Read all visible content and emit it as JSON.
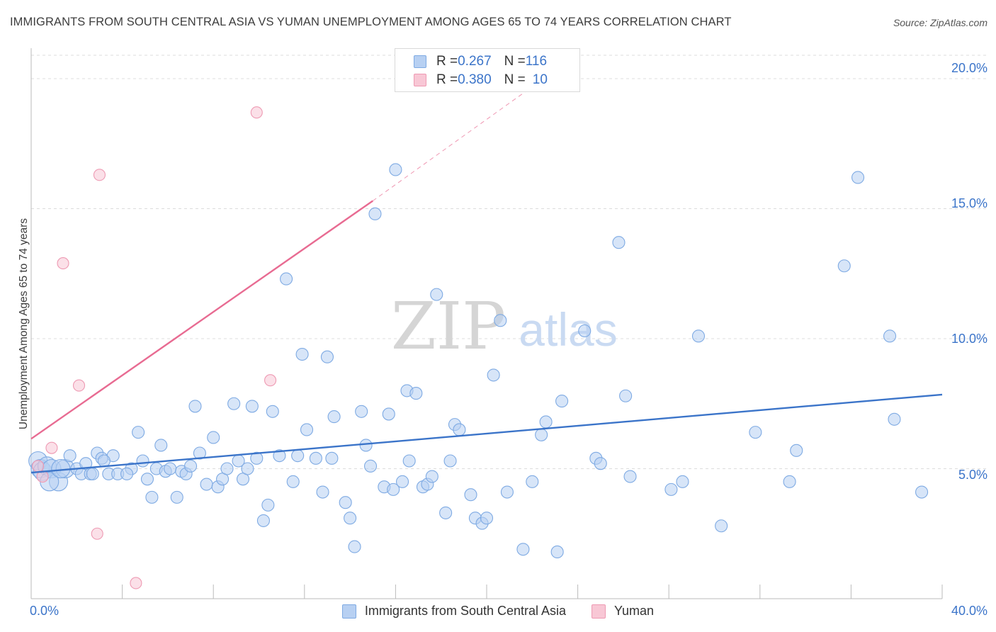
{
  "header": {
    "title": "IMMIGRANTS FROM SOUTH CENTRAL ASIA VS YUMAN UNEMPLOYMENT AMONG AGES 65 TO 74 YEARS CORRELATION CHART",
    "source": "Source: ZipAtlas.com"
  },
  "watermark": {
    "zip": "ZIP",
    "atlas": "atlas"
  },
  "legend": {
    "rows": [
      {
        "r_label": "R = ",
        "r_value": "0.267",
        "n_label": "N = ",
        "n_value": "116"
      },
      {
        "r_label": "R = ",
        "r_value": "0.380",
        "n_label": "N = ",
        "n_value": "10"
      }
    ]
  },
  "colors": {
    "blue_fill": "#b7d0f2",
    "blue_stroke": "#7eaae3",
    "blue_line": "#3b74c9",
    "pink_fill": "#f8c7d5",
    "pink_stroke": "#ee9ab3",
    "pink_line": "#e86b92",
    "grid": "#dcdcdc",
    "axis_text": "#3b74c9"
  },
  "chart_data": {
    "type": "scatter",
    "title": "IMMIGRANTS FROM SOUTH CENTRAL ASIA VS YUMAN UNEMPLOYMENT AMONG AGES 65 TO 74 YEARS CORRELATION CHART",
    "xlabel": "",
    "ylabel": "Unemployment Among Ages 65 to 74 years",
    "xlim": [
      0,
      40
    ],
    "ylim": [
      0,
      20
    ],
    "x_tick_labels": [
      "0.0%",
      "40.0%"
    ],
    "y_ticks": [
      5,
      10,
      15,
      20
    ],
    "y_tick_labels": [
      "5.0%",
      "10.0%",
      "15.0%",
      "20.0%"
    ],
    "grid": true,
    "legend_position": "top-center",
    "series": [
      {
        "name": "Immigrants from South Central Asia",
        "color": "#b7d0f2",
        "points": [
          [
            0.3,
            5.3
          ],
          [
            0.4,
            5.0
          ],
          [
            0.5,
            4.9
          ],
          [
            0.7,
            5.1
          ],
          [
            0.9,
            5.0
          ],
          [
            1.2,
            4.5
          ],
          [
            1.5,
            5.0
          ],
          [
            1.7,
            5.5
          ],
          [
            2.0,
            5.0
          ],
          [
            2.2,
            4.8
          ],
          [
            2.4,
            5.2
          ],
          [
            2.6,
            4.8
          ],
          [
            2.9,
            5.6
          ],
          [
            3.1,
            5.4
          ],
          [
            3.4,
            4.8
          ],
          [
            3.6,
            5.5
          ],
          [
            3.8,
            4.8
          ],
          [
            4.4,
            5.0
          ],
          [
            4.7,
            6.4
          ],
          [
            4.9,
            5.3
          ],
          [
            5.1,
            4.6
          ],
          [
            5.3,
            3.9
          ],
          [
            5.5,
            5.0
          ],
          [
            5.7,
            5.9
          ],
          [
            5.9,
            4.9
          ],
          [
            6.1,
            5.0
          ],
          [
            6.4,
            3.9
          ],
          [
            6.6,
            4.9
          ],
          [
            6.8,
            4.8
          ],
          [
            7.0,
            5.1
          ],
          [
            7.2,
            7.4
          ],
          [
            7.4,
            5.6
          ],
          [
            7.7,
            4.4
          ],
          [
            8.0,
            6.2
          ],
          [
            8.2,
            4.3
          ],
          [
            8.4,
            4.6
          ],
          [
            8.6,
            5.0
          ],
          [
            8.9,
            7.5
          ],
          [
            9.1,
            5.3
          ],
          [
            9.3,
            4.6
          ],
          [
            9.5,
            5.0
          ],
          [
            9.7,
            7.4
          ],
          [
            9.9,
            5.4
          ],
          [
            10.2,
            3.0
          ],
          [
            10.4,
            3.6
          ],
          [
            10.6,
            7.2
          ],
          [
            10.9,
            5.5
          ],
          [
            11.2,
            12.3
          ],
          [
            11.5,
            4.5
          ],
          [
            11.7,
            5.5
          ],
          [
            11.9,
            9.4
          ],
          [
            12.1,
            6.5
          ],
          [
            12.5,
            5.4
          ],
          [
            12.8,
            4.1
          ],
          [
            13.0,
            9.3
          ],
          [
            13.2,
            5.4
          ],
          [
            13.3,
            7.0
          ],
          [
            13.8,
            3.7
          ],
          [
            14.0,
            3.1
          ],
          [
            14.2,
            2.0
          ],
          [
            14.5,
            7.2
          ],
          [
            14.7,
            5.9
          ],
          [
            14.9,
            5.1
          ],
          [
            15.1,
            14.8
          ],
          [
            15.5,
            4.3
          ],
          [
            15.7,
            7.1
          ],
          [
            15.9,
            4.2
          ],
          [
            16.0,
            16.5
          ],
          [
            16.3,
            4.5
          ],
          [
            16.5,
            8.0
          ],
          [
            16.6,
            5.3
          ],
          [
            16.9,
            7.9
          ],
          [
            17.2,
            4.3
          ],
          [
            17.4,
            4.4
          ],
          [
            17.6,
            4.7
          ],
          [
            17.8,
            11.7
          ],
          [
            18.2,
            3.3
          ],
          [
            18.4,
            5.3
          ],
          [
            18.6,
            6.7
          ],
          [
            18.8,
            6.5
          ],
          [
            19.3,
            4.0
          ],
          [
            19.5,
            3.1
          ],
          [
            19.8,
            2.9
          ],
          [
            20.0,
            3.1
          ],
          [
            20.3,
            8.6
          ],
          [
            20.6,
            10.7
          ],
          [
            20.9,
            4.1
          ],
          [
            21.6,
            1.9
          ],
          [
            22.0,
            4.5
          ],
          [
            22.4,
            6.3
          ],
          [
            22.6,
            6.8
          ],
          [
            23.1,
            1.8
          ],
          [
            23.3,
            7.6
          ],
          [
            24.3,
            10.3
          ],
          [
            24.8,
            5.4
          ],
          [
            25.0,
            5.2
          ],
          [
            25.8,
            13.7
          ],
          [
            26.1,
            7.8
          ],
          [
            26.3,
            4.7
          ],
          [
            28.1,
            4.2
          ],
          [
            28.6,
            4.5
          ],
          [
            29.3,
            10.1
          ],
          [
            30.3,
            2.8
          ],
          [
            31.8,
            6.4
          ],
          [
            33.3,
            4.5
          ],
          [
            33.6,
            5.7
          ],
          [
            35.7,
            12.8
          ],
          [
            36.3,
            16.2
          ],
          [
            37.7,
            10.1
          ],
          [
            37.9,
            6.9
          ],
          [
            39.1,
            4.1
          ],
          [
            0.8,
            4.5
          ],
          [
            1.3,
            5.0
          ],
          [
            2.7,
            4.8
          ],
          [
            3.2,
            5.3
          ],
          [
            4.2,
            4.8
          ]
        ]
      },
      {
        "name": "Yuman",
        "color": "#f8c7d5",
        "points": [
          [
            0.5,
            4.7
          ],
          [
            0.9,
            5.8
          ],
          [
            1.4,
            12.9
          ],
          [
            2.1,
            8.2
          ],
          [
            2.9,
            2.5
          ],
          [
            3.0,
            16.3
          ],
          [
            4.6,
            0.6
          ],
          [
            9.9,
            18.7
          ],
          [
            10.5,
            8.4
          ],
          [
            0.3,
            5.1
          ]
        ]
      }
    ],
    "trendlines": [
      {
        "series": "Immigrants from South Central Asia",
        "from": [
          0,
          4.85
        ],
        "to": [
          40,
          7.85
        ],
        "style": "solid"
      },
      {
        "series": "Yuman",
        "from": [
          0,
          6.15
        ],
        "to": [
          15,
          15.3
        ],
        "style": "solid"
      },
      {
        "series": "Yuman",
        "from": [
          15,
          15.3
        ],
        "to": [
          21.7,
          19.5
        ],
        "style": "dashed"
      }
    ]
  },
  "bottom_legend": {
    "items": [
      {
        "label": "Immigrants from South Central Asia"
      },
      {
        "label": "Yuman"
      }
    ]
  }
}
